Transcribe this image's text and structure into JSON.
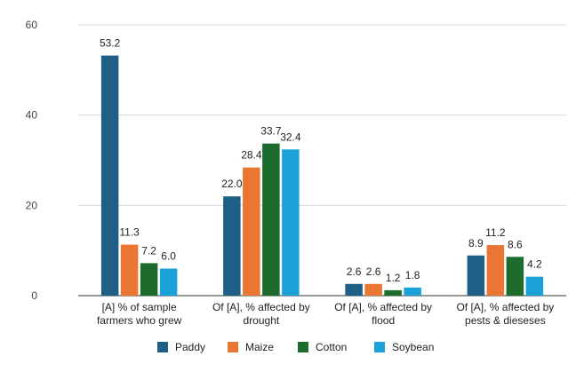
{
  "chart_data": {
    "type": "bar",
    "title": "",
    "xlabel": "",
    "ylabel": "",
    "ylim": [
      0,
      60
    ],
    "yticks": [
      "0",
      "20",
      "40",
      "60"
    ],
    "grid": true,
    "legend_position": "bottom",
    "categories": [
      [
        "[A] % of sample",
        "farmers who grew"
      ],
      [
        "Of [A], % affected by",
        "drought"
      ],
      [
        "Of [A], % affected by",
        "flood"
      ],
      [
        "Of [A], % affected by",
        "pests & dieseses"
      ]
    ],
    "series": [
      {
        "name": "Paddy",
        "color": "#1f5f86",
        "values": [
          53.2,
          22.0,
          2.6,
          8.9
        ],
        "labels": [
          "53.2",
          "22.0",
          "2.6",
          "8.9"
        ]
      },
      {
        "name": "Maize",
        "color": "#ea7633",
        "values": [
          11.3,
          28.4,
          2.6,
          11.2
        ],
        "labels": [
          "11.3",
          "28.4",
          "2.6",
          "11.2"
        ]
      },
      {
        "name": "Cotton",
        "color": "#1e6c2d",
        "values": [
          7.2,
          33.7,
          1.2,
          8.6
        ],
        "labels": [
          "7.2",
          "33.7",
          "1.2",
          "8.6"
        ]
      },
      {
        "name": "Soybean",
        "color": "#1ba0d8",
        "values": [
          6.0,
          32.4,
          1.8,
          4.2
        ],
        "labels": [
          "6.0",
          "32.4",
          "1.8",
          "4.2"
        ]
      }
    ]
  }
}
